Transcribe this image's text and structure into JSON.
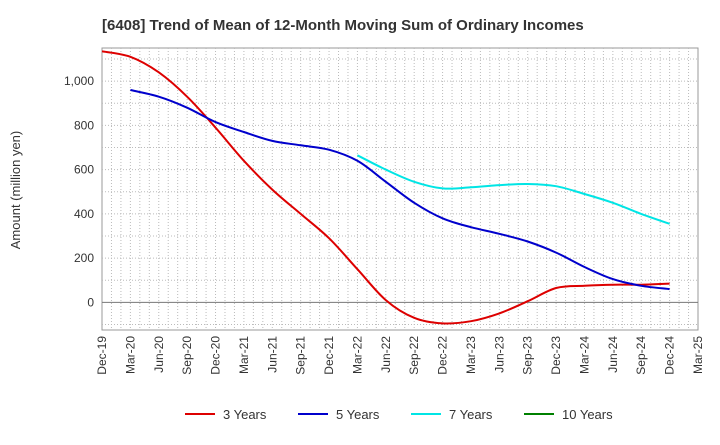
{
  "chart_data": {
    "type": "line",
    "title": "[6408]  Trend of Mean of 12-Month Moving Sum of Ordinary Incomes",
    "xlabel": "",
    "ylabel": "Amount (million yen)",
    "ylim": [
      -125,
      1150
    ],
    "yticks": [
      0,
      200,
      400,
      600,
      800,
      1000
    ],
    "ytick_labels": [
      "0",
      "200",
      "400",
      "600",
      "800",
      "1,000"
    ],
    "categories": [
      "Dec-19",
      "Mar-20",
      "Jun-20",
      "Sep-20",
      "Dec-20",
      "Mar-21",
      "Jun-21",
      "Sep-21",
      "Dec-21",
      "Mar-22",
      "Jun-22",
      "Sep-22",
      "Dec-22",
      "Mar-23",
      "Jun-23",
      "Sep-23",
      "Dec-23",
      "Mar-24",
      "Jun-24",
      "Sep-24",
      "Dec-24",
      "Mar-25"
    ],
    "grid": true,
    "legend_position": "bottom",
    "series": [
      {
        "name": "3 Years",
        "color": "#dd0000",
        "values": [
          1135,
          1110,
          1040,
          930,
          790,
          640,
          510,
          400,
          290,
          150,
          10,
          -70,
          -95,
          -85,
          -50,
          5,
          65,
          75,
          80,
          80,
          85,
          null
        ]
      },
      {
        "name": "5 Years",
        "color": "#0000cc",
        "values": [
          null,
          960,
          930,
          880,
          815,
          770,
          730,
          710,
          690,
          640,
          545,
          450,
          380,
          340,
          310,
          275,
          225,
          160,
          105,
          75,
          60,
          null
        ]
      },
      {
        "name": "7 Years",
        "color": "#00e5e5",
        "values": [
          null,
          null,
          null,
          null,
          null,
          null,
          null,
          null,
          null,
          665,
          600,
          545,
          515,
          520,
          530,
          535,
          525,
          490,
          450,
          400,
          355,
          null
        ]
      },
      {
        "name": "10 Years",
        "color": "#008000",
        "values": [
          null,
          null,
          null,
          null,
          null,
          null,
          null,
          null,
          null,
          null,
          null,
          null,
          null,
          null,
          null,
          null,
          null,
          null,
          null,
          null,
          null,
          null
        ]
      }
    ]
  }
}
